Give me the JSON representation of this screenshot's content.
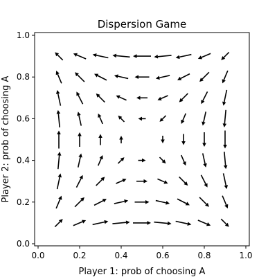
{
  "chart_data": {
    "type": "quiver",
    "title": "Dispersion Game",
    "xlabel": "Player 1: prob of choosing A",
    "ylabel": "Player 2: prob of choosing A",
    "xlim": [
      0.0,
      1.0
    ],
    "ylim": [
      0.0,
      1.0
    ],
    "xticks": [
      "0.0",
      "0.2",
      "0.4",
      "0.6",
      "0.8",
      "1.0"
    ],
    "yticks": [
      "0.0",
      "0.2",
      "0.4",
      "0.6",
      "0.8",
      "1.0"
    ],
    "grid": false,
    "arrow_color": "#000000",
    "field": {
      "grid_x": [
        0.1,
        0.2,
        0.3,
        0.4,
        0.5,
        0.6,
        0.7,
        0.8,
        0.9
      ],
      "grid_y": [
        0.1,
        0.2,
        0.3,
        0.4,
        0.5,
        0.6,
        0.7,
        0.8,
        0.9
      ],
      "u": "x(1-x)(1-2y)",
      "v": "y(1-y)(1-2x)"
    }
  }
}
